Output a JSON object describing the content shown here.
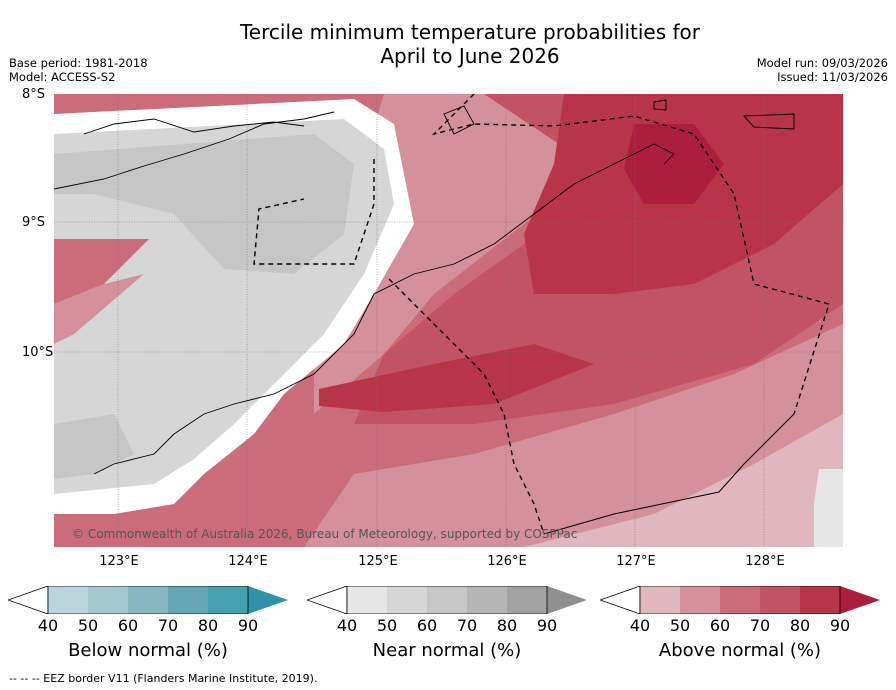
{
  "title": {
    "line1": "Tercile minimum temperature probabilities for",
    "line2": "April to June 2026"
  },
  "meta": {
    "base_period": "Base period: 1981-2018",
    "model": "Model: ACCESS-S2",
    "model_run": "Model run: 09/03/2026",
    "issued": "Issued: 11/03/2026"
  },
  "map": {
    "lat_labels": [
      "8°S",
      "9°S",
      "10°S"
    ],
    "lon_labels": [
      "123°E",
      "124°E",
      "125°E",
      "126°E",
      "127°E",
      "128°E"
    ],
    "copyright": "© Commonwealth of Australia 2026, Bureau of Meteorology, supported by COSPPac"
  },
  "colorbars": [
    {
      "name": "below",
      "label": "Below normal (%)",
      "ticks": [
        "40",
        "50",
        "60",
        "70",
        "80",
        "90"
      ],
      "colors": [
        "#bcd5dc",
        "#a6c9d0",
        "#88b6c1",
        "#67a6b4",
        "#45a0b0",
        "#2e93a8"
      ]
    },
    {
      "name": "near",
      "label": "Near normal (%)",
      "ticks": [
        "40",
        "50",
        "60",
        "70",
        "80",
        "90"
      ],
      "colors": [
        "#e6e6e6",
        "#d6d6d6",
        "#c6c6c6",
        "#b5b5b5",
        "#a3a3a3",
        "#8f8f8f"
      ]
    },
    {
      "name": "above",
      "label": "Above normal (%)",
      "ticks": [
        "40",
        "50",
        "60",
        "70",
        "80",
        "90"
      ],
      "colors": [
        "#e1b7bf",
        "#d4909b",
        "#cb6c7a",
        "#c15364",
        "#b83549",
        "#ad1d3c"
      ]
    }
  ],
  "legend_footer": "-- -- -- EEZ border V11 (Flanders Marine Institute, 2019)."
}
